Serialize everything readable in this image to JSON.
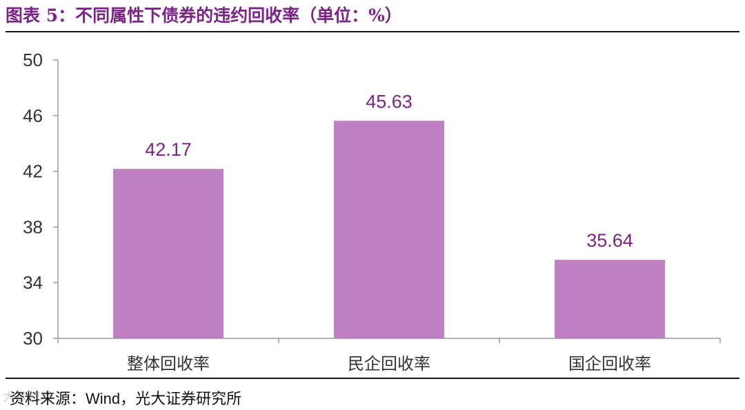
{
  "figure": {
    "title": "图表 5：不同属性下债券的违约回收率（单位：%）",
    "source_prefix": "资料来源：",
    "source_wind": "Wind",
    "source_suffix": "，光大证券研究所",
    "watermark": "大数跨境"
  },
  "colors": {
    "title": "#7b2386",
    "bar": "#be80c2",
    "data_label": "#7b2386",
    "axis": "#999999"
  },
  "chart_data": {
    "type": "bar",
    "categories": [
      "整体回收率",
      "民企回收率",
      "国企回收率"
    ],
    "values": [
      42.17,
      45.63,
      35.64
    ],
    "data_labels": [
      "42.17",
      "45.63",
      "35.64"
    ],
    "ylim": [
      30,
      50
    ],
    "yticks": [
      30,
      34,
      38,
      42,
      46,
      50
    ],
    "grid": false,
    "legend": "none"
  }
}
